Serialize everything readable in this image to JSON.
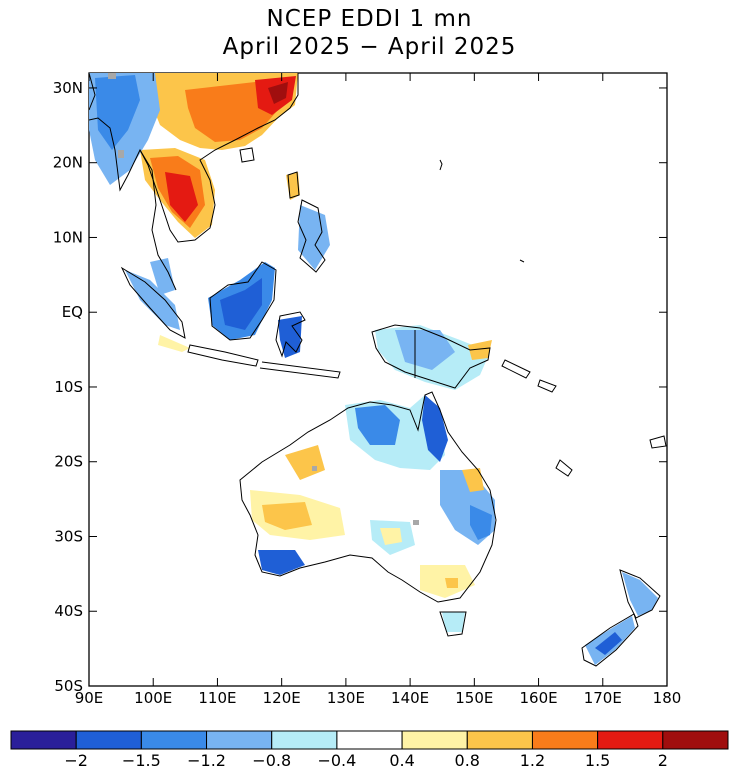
{
  "title": "NCEP EDDI 1 mn",
  "subtitle": "April 2025 − April 2025",
  "map": {
    "lon_range": [
      90,
      180
    ],
    "lat_range": [
      -50,
      32
    ],
    "lat_ticks": [
      {
        "lat": 30,
        "label": "30N"
      },
      {
        "lat": 20,
        "label": "20N"
      },
      {
        "lat": 10,
        "label": "10N"
      },
      {
        "lat": 0,
        "label": "EQ"
      },
      {
        "lat": -10,
        "label": "10S"
      },
      {
        "lat": -20,
        "label": "20S"
      },
      {
        "lat": -30,
        "label": "30S"
      },
      {
        "lat": -40,
        "label": "40S"
      },
      {
        "lat": -50,
        "label": "50S"
      }
    ],
    "lon_ticks": [
      {
        "lon": 90,
        "label": "90E"
      },
      {
        "lon": 100,
        "label": "100E"
      },
      {
        "lon": 110,
        "label": "110E"
      },
      {
        "lon": 120,
        "label": "120E"
      },
      {
        "lon": 130,
        "label": "130E"
      },
      {
        "lon": 140,
        "label": "140E"
      },
      {
        "lon": 150,
        "label": "150E"
      },
      {
        "lon": 160,
        "label": "160E"
      },
      {
        "lon": 170,
        "label": "170E"
      },
      {
        "lon": 180,
        "label": "180"
      }
    ]
  },
  "colorbar": {
    "colors": [
      "#2a1f9a",
      "#1f5fd6",
      "#3a8ae8",
      "#78b4f2",
      "#b6ecf7",
      "#ffffff",
      "#fff3a6",
      "#fcc54a",
      "#f97c1a",
      "#e41a12",
      "#a00e0e"
    ],
    "tick_values": [
      -2,
      -1.5,
      -1.2,
      -0.8,
      -0.4,
      0.4,
      0.8,
      1.2,
      1.5,
      2
    ],
    "tick_labels": [
      "−2",
      "−1.5",
      "−1.2",
      "−0.8",
      "−0.4",
      "0.4",
      "0.8",
      "1.2",
      "1.5",
      "2"
    ]
  }
}
